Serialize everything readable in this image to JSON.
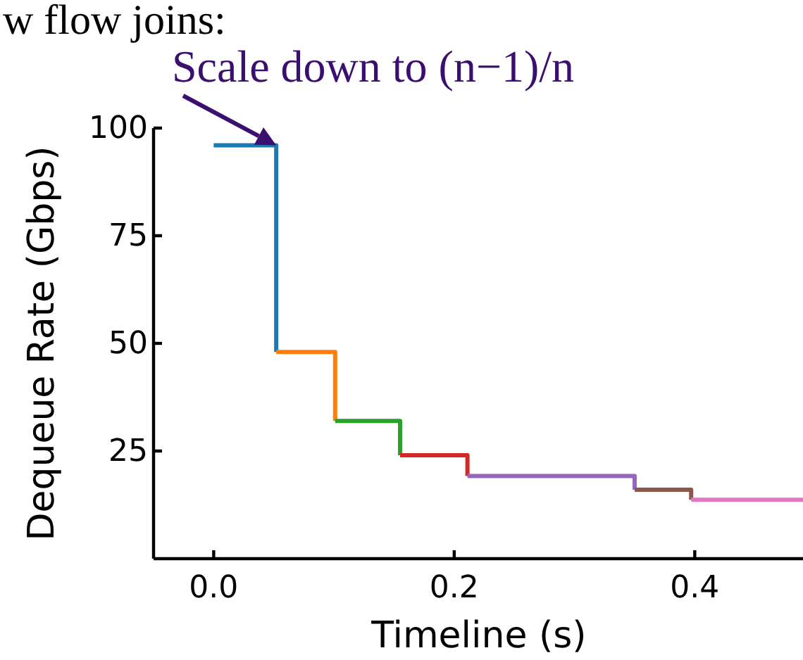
{
  "chart_data": {
    "type": "line",
    "title": "w flow joins:",
    "xlabel": "Timeline (s)",
    "ylabel": "Dequeue Rate (Gbps)",
    "xlim": [
      -0.05,
      0.49
    ],
    "ylim": [
      0,
      100
    ],
    "xticks": [
      {
        "value": 0,
        "label": "0.0"
      },
      {
        "value": 0.2,
        "label": "0.2"
      },
      {
        "value": 0.4,
        "label": "0.4"
      }
    ],
    "yticks": [
      25,
      50,
      75,
      100
    ],
    "grid": false,
    "marker": "none",
    "line_style": "solid",
    "annotations": [
      {
        "text": "Scale down to (n−1)/n",
        "x": 0.052,
        "y": 96
      }
    ],
    "series": [
      {
        "color": "#1f77b4",
        "x": [
          0,
          0.052,
          0.052
        ],
        "values": [
          96,
          96,
          48
        ]
      },
      {
        "color": "#ff7f0e",
        "x": [
          0.052,
          0.101,
          0.101
        ],
        "values": [
          48,
          48,
          32
        ]
      },
      {
        "color": "#2ca02c",
        "x": [
          0.101,
          0.155,
          0.155
        ],
        "values": [
          32,
          32,
          24
        ]
      },
      {
        "color": "#d62728",
        "x": [
          0.155,
          0.211,
          0.211
        ],
        "values": [
          24,
          24,
          19.2
        ]
      },
      {
        "color": "#9467bd",
        "x": [
          0.211,
          0.35,
          0.35
        ],
        "values": [
          19.2,
          19.2,
          16
        ]
      },
      {
        "color": "#8c564b",
        "x": [
          0.35,
          0.397,
          0.397
        ],
        "values": [
          16,
          16,
          13.7
        ]
      },
      {
        "color": "#e377c2",
        "x": [
          0.397,
          0.49
        ],
        "values": [
          13.7,
          13.7
        ]
      }
    ]
  }
}
